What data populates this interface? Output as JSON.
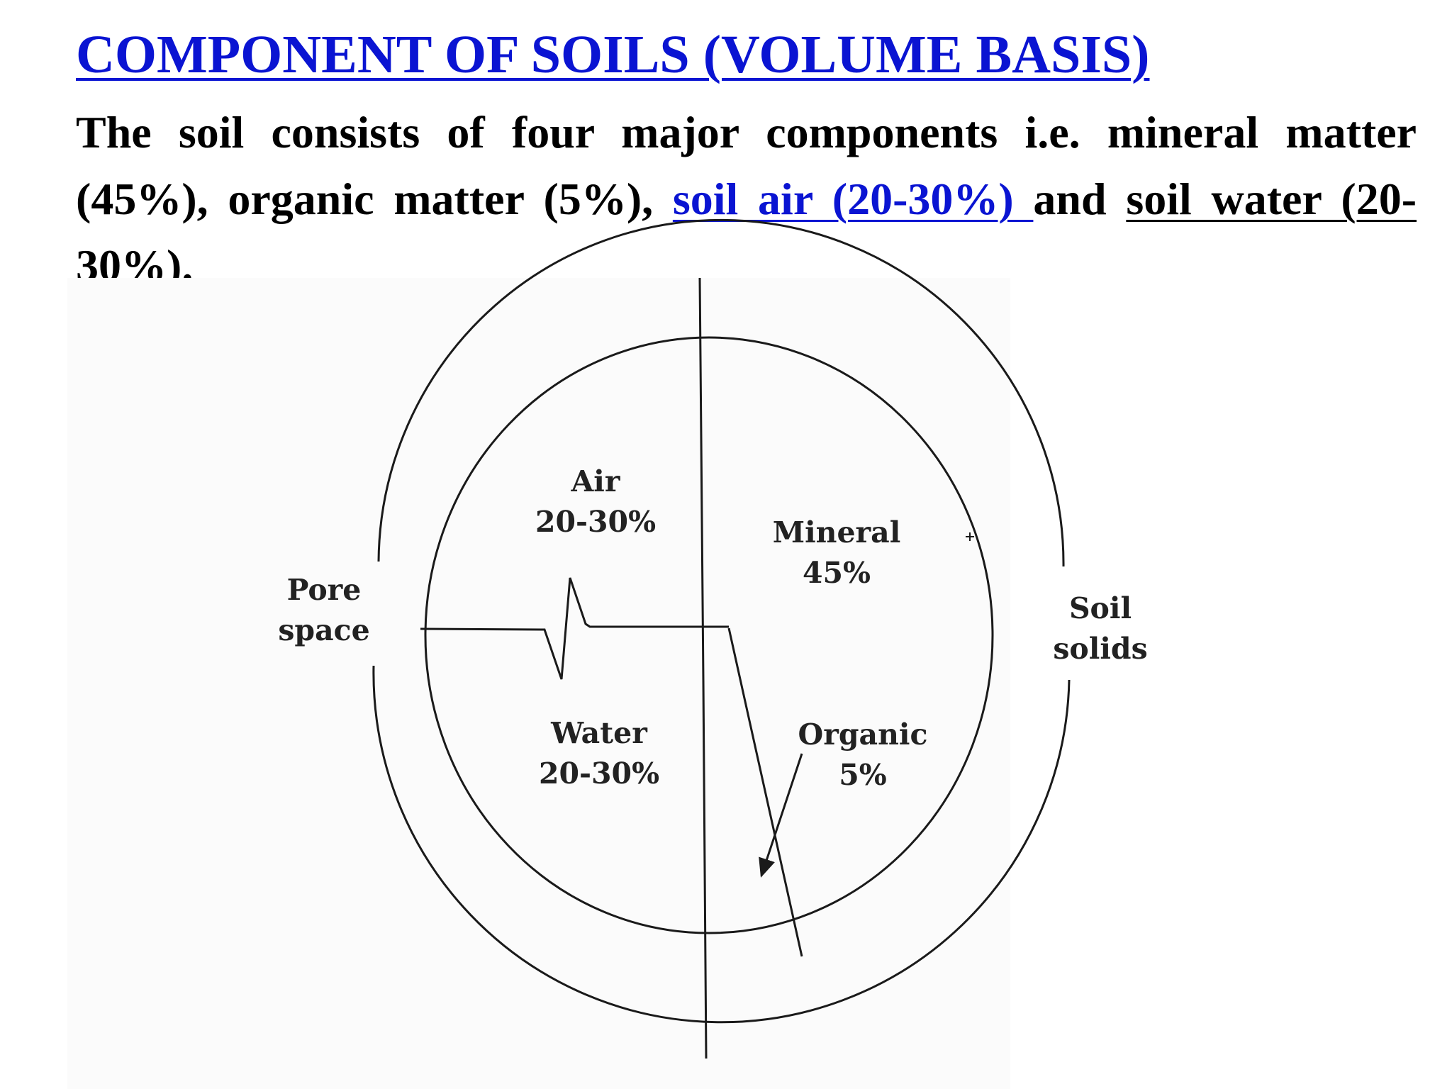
{
  "title": "COMPONENT OF SOILS (VOLUME BASIS)",
  "intro": {
    "text_before": "The soil consists of four major components i.e. mineral matter (45%), organic matter (5%), ",
    "soil_air": "soil air (20-30%) ",
    "text_and": "and ",
    "soil_water": "soil water (20-30%)."
  },
  "diagram": {
    "air_name": "Air",
    "air_value": "20-30%",
    "water_name": "Water",
    "water_value": "20-30%",
    "mineral_name": "Mineral",
    "mineral_value": "45%",
    "organic_name": "Organic",
    "organic_value": "5%",
    "pore_line1": "Pore",
    "pore_line2": "space",
    "solids_line1": "Soil",
    "solids_line2": "solids"
  },
  "colors": {
    "link_blue": "#0a14d2",
    "text": "#000000",
    "diagram_line": "#1a1a1a"
  }
}
